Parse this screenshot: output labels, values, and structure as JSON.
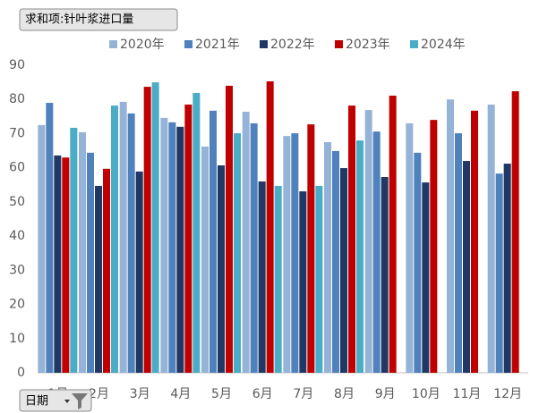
{
  "chart_data": {
    "type": "bar",
    "field_buttons": {
      "value_field": "求和项:针叶浆进口量",
      "axis_field": "日期"
    },
    "categories": [
      "1月",
      "2月",
      "3月",
      "4月",
      "5月",
      "6月",
      "7月",
      "8月",
      "9月",
      "10月",
      "11月",
      "12月"
    ],
    "series": [
      {
        "name": "2020年",
        "color": "#95b3d7",
        "values": [
          72.5,
          70.4,
          79.3,
          74.6,
          66.2,
          76.4,
          69.3,
          67.5,
          76.9,
          73.0,
          80.0,
          78.5
        ]
      },
      {
        "name": "2021年",
        "color": "#4f81bd",
        "values": [
          79.0,
          64.4,
          75.9,
          73.3,
          76.7,
          73.0,
          70.1,
          64.9,
          70.6,
          64.4,
          70.1,
          58.3
        ]
      },
      {
        "name": "2022年",
        "color": "#1f3864",
        "values": [
          63.6,
          54.7,
          58.9,
          72.0,
          60.7,
          56.0,
          53.1,
          59.9,
          57.3,
          55.7,
          62.0,
          61.2
        ]
      },
      {
        "name": "2023年",
        "color": "#c00000",
        "values": [
          63.0,
          59.7,
          83.7,
          78.5,
          84.0,
          85.3,
          72.7,
          78.2,
          81.1,
          74.0,
          76.7,
          82.4
        ]
      },
      {
        "name": "2024年",
        "color": "#4bacc6",
        "values": [
          71.7,
          78.2,
          85.0,
          81.9,
          70.1,
          54.7,
          54.7,
          68.0,
          null,
          null,
          null,
          null
        ]
      }
    ],
    "ylim": [
      0,
      90
    ],
    "yticks": [
      0,
      10,
      20,
      30,
      40,
      50,
      60,
      70,
      80,
      90
    ],
    "grid": false
  }
}
